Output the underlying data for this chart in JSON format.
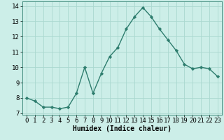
{
  "x": [
    0,
    1,
    2,
    3,
    4,
    5,
    6,
    7,
    8,
    9,
    10,
    11,
    12,
    13,
    14,
    15,
    16,
    17,
    18,
    19,
    20,
    21,
    22,
    23
  ],
  "y": [
    8.0,
    7.8,
    7.4,
    7.4,
    7.3,
    7.4,
    8.3,
    10.0,
    8.3,
    9.6,
    10.7,
    11.3,
    12.5,
    13.3,
    13.9,
    13.3,
    12.5,
    11.8,
    11.1,
    10.2,
    9.9,
    10.0,
    9.9,
    9.4
  ],
  "line_color": "#2e7d6e",
  "marker": "D",
  "marker_size": 2.2,
  "background_color": "#cceee8",
  "grid_color": "#aad8d0",
  "xlabel": "Humidex (Indice chaleur)",
  "ylabel": "",
  "xlim": [
    -0.5,
    23.5
  ],
  "ylim": [
    6.9,
    14.3
  ],
  "yticks": [
    7,
    8,
    9,
    10,
    11,
    12,
    13,
    14
  ],
  "xticks": [
    0,
    1,
    2,
    3,
    4,
    5,
    6,
    7,
    8,
    9,
    10,
    11,
    12,
    13,
    14,
    15,
    16,
    17,
    18,
    19,
    20,
    21,
    22,
    23
  ],
  "xlabel_fontsize": 7,
  "tick_fontsize": 6.5,
  "line_width": 1.0
}
